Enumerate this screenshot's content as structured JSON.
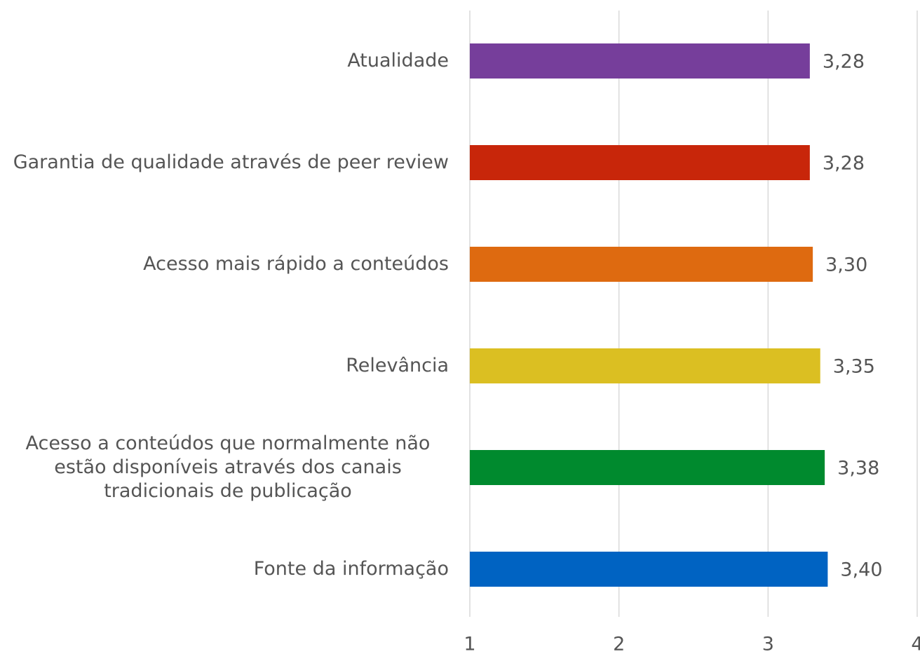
{
  "chart_data": {
    "type": "barh",
    "categories": [
      "Atualidade",
      "Garantia de qualidade através de peer review",
      "Acesso mais rápido a conteúdos",
      "Relevância",
      "Acesso a conteúdos que normalmente não estão disponíveis através dos canais tradicionais de publicação",
      "Fonte da informação"
    ],
    "values": [
      3.28,
      3.28,
      3.3,
      3.35,
      3.38,
      3.4
    ],
    "value_labels": [
      "3,28",
      "3,28",
      "3,30",
      "3,35",
      "3,38",
      "3,40"
    ],
    "colors": [
      "#763e9b",
      "#c8260a",
      "#de6a10",
      "#dbbf22",
      "#008a2e",
      "#0063c2"
    ],
    "xlim": [
      1,
      4
    ],
    "xticks": [
      1,
      2,
      3,
      4
    ],
    "grid": true
  }
}
